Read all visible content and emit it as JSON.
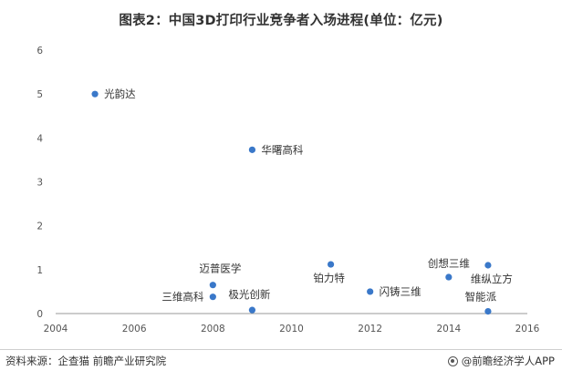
{
  "chart_data": {
    "type": "scatter",
    "title": "图表2：中国3D打印行业竞争者入场进程(单位：亿元)",
    "xlim": [
      2004,
      2016
    ],
    "ylim": [
      0,
      6
    ],
    "xticks": [
      2004,
      2006,
      2008,
      2010,
      2012,
      2014,
      2016
    ],
    "yticks": [
      0,
      1,
      2,
      3,
      4,
      5,
      6
    ],
    "grid": false,
    "legend": "none",
    "marker_color": "#3a78c9",
    "points": [
      {
        "label": "光韵达",
        "x": 2005.0,
        "y": 5.0
      },
      {
        "label": "华曙高科",
        "x": 2009.0,
        "y": 3.73
      },
      {
        "label": "迈普医学",
        "x": 2008.0,
        "y": 0.65
      },
      {
        "label": "三维高科",
        "x": 2008.0,
        "y": 0.38
      },
      {
        "label": "极光创新",
        "x": 2009.0,
        "y": 0.08
      },
      {
        "label": "铂力特",
        "x": 2011.0,
        "y": 1.12
      },
      {
        "label": "闪铸三维",
        "x": 2012.0,
        "y": 0.5
      },
      {
        "label": "创想三维",
        "x": 2014.0,
        "y": 0.83
      },
      {
        "label": "维纵立方",
        "x": 2015.0,
        "y": 1.1
      },
      {
        "label": "智能派",
        "x": 2015.0,
        "y": 0.05
      }
    ]
  },
  "footer": {
    "source": "资料来源：企查猫 前瞻产业研究院",
    "brand": "@前瞻经济学人APP"
  }
}
